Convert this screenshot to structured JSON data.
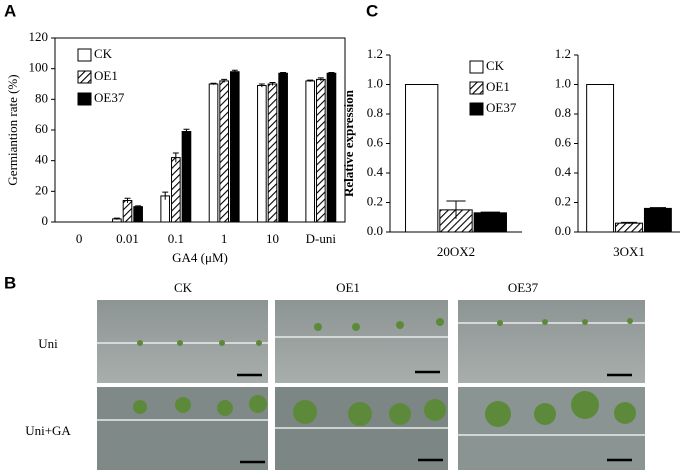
{
  "panel_labels": [
    "A",
    "B",
    "C"
  ],
  "chart_data": [
    {
      "type": "bar",
      "ylabel": "Germiantion rate (%)",
      "xlabel": "GA4 (μM)",
      "categories": [
        "0",
        "0.01",
        "0.1",
        "1",
        "10",
        "D-uni"
      ],
      "series": [
        {
          "name": "CK",
          "color": "#ffffff",
          "values": [
            0,
            2,
            17,
            90,
            89,
            92
          ],
          "errors": [
            0,
            0.5,
            2.5,
            0.5,
            1,
            0.5
          ]
        },
        {
          "name": "OE1",
          "color": "#000000",
          "hatch": true,
          "values": [
            0,
            14,
            42,
            92,
            90,
            93
          ],
          "errors": [
            0,
            1.5,
            3,
            1,
            1,
            1
          ]
        },
        {
          "name": "OE37",
          "color": "#000000",
          "values": [
            0,
            10,
            59,
            98,
            97,
            97
          ],
          "errors": [
            0,
            0.5,
            1.5,
            1,
            0.5,
            0.5
          ]
        }
      ],
      "ylim": [
        0,
        120
      ],
      "yticks": [
        0,
        20,
        40,
        60,
        80,
        100,
        120
      ],
      "legend": "upper left"
    },
    {
      "type": "bar",
      "ylabel": "Relative expression",
      "categories": [
        "20OX2"
      ],
      "series": [
        {
          "name": "CK",
          "color": "#ffffff",
          "values": [
            1.0
          ],
          "errors": [
            0
          ]
        },
        {
          "name": "OE1",
          "color": "#000000",
          "hatch": true,
          "values": [
            0.15
          ],
          "errors": [
            0.06
          ]
        },
        {
          "name": "OE37",
          "color": "#000000",
          "values": [
            0.13
          ],
          "errors": [
            0.005
          ]
        }
      ],
      "ylim": [
        0,
        1.2
      ],
      "yticks": [
        {
          "value": 0,
          "label": "0.0"
        },
        0.2,
        0.4,
        0.6,
        0.8,
        {
          "value": 1,
          "label": "1.0"
        },
        1.2
      ],
      "legend": "upper right"
    },
    {
      "type": "bar",
      "categories": [
        "3OX1"
      ],
      "series": [
        {
          "name": "CK",
          "color": "#ffffff",
          "values": [
            1.0
          ],
          "errors": [
            0
          ]
        },
        {
          "name": "OE1",
          "color": "#000000",
          "hatch": true,
          "values": [
            0.06
          ],
          "errors": [
            0.005
          ]
        },
        {
          "name": "OE37",
          "color": "#000000",
          "values": [
            0.16
          ],
          "errors": [
            0.005
          ]
        }
      ],
      "ylim": [
        0,
        1.2
      ],
      "yticks": [
        {
          "value": 0,
          "label": "0.0"
        },
        0.2,
        0.4,
        0.6,
        0.8,
        {
          "value": 1,
          "label": "1.0"
        },
        1.2
      ]
    }
  ],
  "photo_grid": {
    "columns": [
      "CK",
      "OE1",
      "OE37"
    ],
    "rows": [
      "Uni",
      "Uni+GA"
    ]
  }
}
